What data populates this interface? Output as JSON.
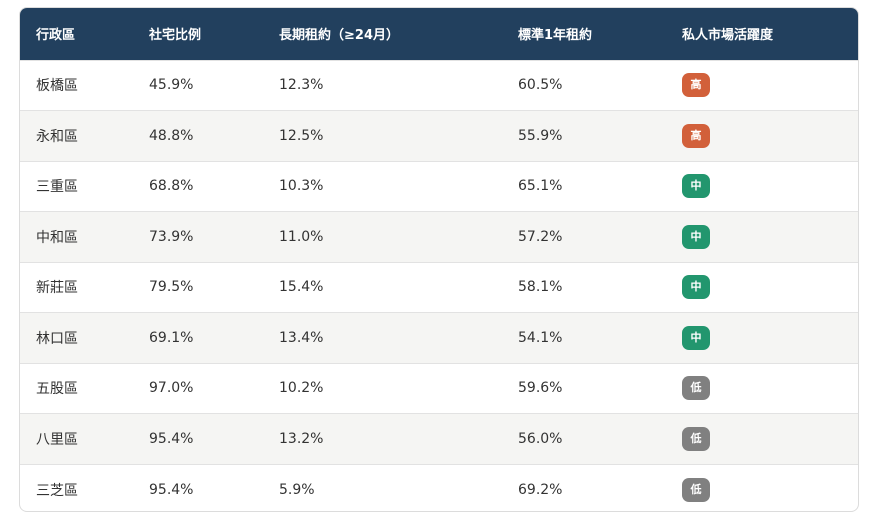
{
  "table": {
    "header": [
      "行政區",
      "社宅比例",
      "長期租約（≥24月）",
      "標準1年租約",
      "私人市場活躍度"
    ],
    "rows": [
      [
        "板橋區",
        "45.9%",
        "12.3%",
        "60.5%",
        "高"
      ],
      [
        "永和區",
        "48.8%",
        "12.5%",
        "55.9%",
        "高"
      ],
      [
        "三重區",
        "68.8%",
        "10.3%",
        "65.1%",
        "中"
      ],
      [
        "中和區",
        "73.9%",
        "11.0%",
        "57.2%",
        "中"
      ],
      [
        "新莊區",
        "79.5%",
        "15.4%",
        "58.1%",
        "中"
      ],
      [
        "林口區",
        "69.1%",
        "13.4%",
        "54.1%",
        "中"
      ],
      [
        "五股區",
        "97.0%",
        "10.2%",
        "59.6%",
        "低"
      ],
      [
        "八里區",
        "95.4%",
        "13.2%",
        "56.0%",
        "低"
      ],
      [
        "三芝區",
        "95.4%",
        "5.9%",
        "69.2%",
        "低"
      ]
    ],
    "badge_colors": {
      "高": "#d2603a",
      "中": "#22966e",
      "低": "#808080"
    }
  }
}
